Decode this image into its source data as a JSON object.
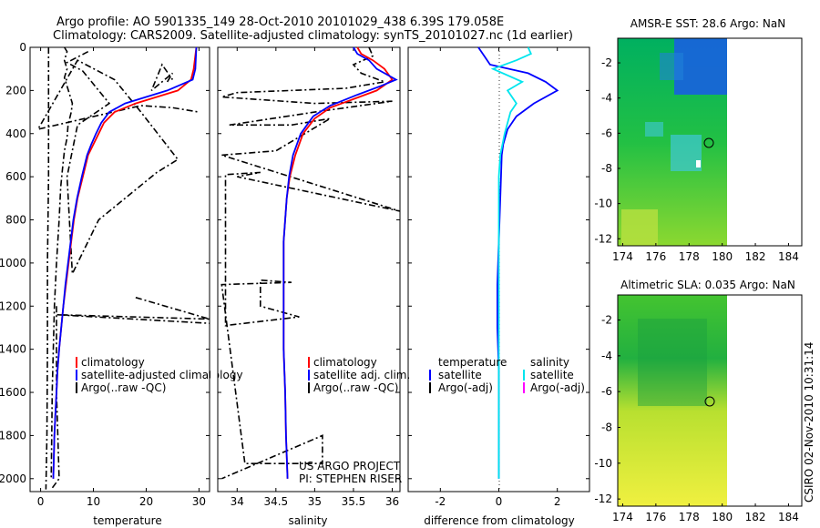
{
  "title": {
    "line1": "Argo profile: AO 5901335_149 28-Oct-2010 20101029_438 6.39S 179.058E",
    "line2": "Climatology: CARS2009. Satellite-adjusted climatology: synTS_20101027.nc (1d earlier)"
  },
  "colors": {
    "climatology": "#ff0000",
    "satellite": "#0000ff",
    "argo": "#000000",
    "salinity_satellite": "#00e5ee",
    "salinity_argo_adj": "#ff00ff"
  },
  "project": {
    "line1": "US ARGO PROJECT",
    "line2": "PI: STEPHEN RISER"
  },
  "timestamp": "CSIRO 02-Nov-2010 10:31:14",
  "chart_data": [
    {
      "id": "temperature",
      "type": "line",
      "xlabel": "temperature",
      "xlim": [
        -2,
        32
      ],
      "ylim": [
        2060,
        0
      ],
      "xticks": [
        0,
        10,
        20,
        30
      ],
      "yticks": [
        0,
        200,
        400,
        600,
        800,
        1000,
        1200,
        1400,
        1600,
        1800,
        2000
      ],
      "legend": {
        "position": "bottom-right",
        "entries": [
          "climatology",
          "satellite-adjusted climatology",
          "Argo(..raw -QC)"
        ]
      },
      "series": [
        {
          "name": "climatology",
          "style": "solid",
          "points": [
            [
              29.5,
              0
            ],
            [
              29,
              100
            ],
            [
              28.5,
              150
            ],
            [
              26,
              200
            ],
            [
              18,
              260
            ],
            [
              14,
              300
            ],
            [
              12,
              350
            ],
            [
              11,
              400
            ],
            [
              10,
              450
            ],
            [
              9,
              500
            ],
            [
              8,
              600
            ],
            [
              7,
              700
            ],
            [
              6.3,
              800
            ],
            [
              5.8,
              900
            ],
            [
              5.3,
              1000
            ],
            [
              4.8,
              1100
            ],
            [
              4.3,
              1200
            ],
            [
              3.9,
              1300
            ],
            [
              3.5,
              1400
            ],
            [
              3.2,
              1500
            ],
            [
              3,
              1600
            ],
            [
              2.8,
              1700
            ],
            [
              2.6,
              1800
            ],
            [
              2.5,
              1900
            ],
            [
              2.4,
              2000
            ]
          ]
        },
        {
          "name": "satellite",
          "style": "solid",
          "points": [
            [
              29.5,
              0
            ],
            [
              29.3,
              100
            ],
            [
              28.8,
              150
            ],
            [
              24,
              200
            ],
            [
              16,
              260
            ],
            [
              13,
              300
            ],
            [
              11.5,
              350
            ],
            [
              10.5,
              400
            ],
            [
              9.6,
              450
            ],
            [
              8.8,
              500
            ],
            [
              7.8,
              600
            ],
            [
              6.9,
              700
            ],
            [
              6.2,
              800
            ],
            [
              5.7,
              900
            ],
            [
              5.2,
              1000
            ],
            [
              4.7,
              1100
            ],
            [
              4.3,
              1200
            ],
            [
              3.9,
              1300
            ],
            [
              3.5,
              1400
            ],
            [
              3.2,
              1500
            ],
            [
              3,
              1600
            ],
            [
              2.8,
              1700
            ],
            [
              2.6,
              1800
            ],
            [
              2.5,
              1900
            ],
            [
              2.4,
              2000
            ]
          ]
        },
        {
          "name": "Argo raw",
          "style": "dashdot",
          "points": [
            [
              4.5,
              0
            ],
            [
              5,
              20
            ],
            [
              4.5,
              60
            ],
            [
              5,
              100
            ],
            [
              4.5,
              140
            ],
            [
              5,
              180
            ],
            [
              5.5,
              220
            ],
            [
              6,
              260
            ],
            [
              5.8,
              300
            ],
            [
              5.2,
              360
            ],
            [
              5,
              420
            ],
            [
              4.5,
              480
            ],
            [
              4.2,
              550
            ],
            [
              3.8,
              650
            ],
            [
              3.5,
              800
            ],
            [
              3,
              1000
            ],
            [
              2.6,
              1200
            ],
            [
              2.4,
              1400
            ],
            [
              2.2,
              1600
            ],
            [
              2.1,
              1800
            ],
            [
              2,
              2000
            ]
          ]
        },
        {
          "name": "Argo raw",
          "style": "dashdot",
          "points": [
            [
              9,
              20
            ],
            [
              5,
              70
            ],
            [
              8,
              110
            ],
            [
              12,
              230
            ],
            [
              13,
              260
            ],
            [
              7,
              360
            ],
            [
              5,
              600
            ],
            [
              6,
              1050
            ],
            [
              11,
              800
            ],
            [
              22,
              580
            ],
            [
              26,
              520
            ],
            [
              19,
              300
            ],
            [
              14,
              150
            ],
            [
              7,
              60
            ],
            [
              -0.5,
              380
            ],
            [
              19,
              270
            ],
            [
              25,
              280
            ],
            [
              30,
              300
            ]
          ]
        },
        {
          "name": "Argo raw",
          "style": "dashdot",
          "points": [
            [
              24,
              160
            ],
            [
              25,
              120
            ],
            [
              21,
              200
            ],
            [
              23,
              80
            ],
            [
              25,
              150
            ]
          ]
        },
        {
          "name": "Argo raw",
          "style": "dashdot",
          "points": [
            [
              1.5,
              0
            ],
            [
              1.5,
              600
            ],
            [
              1.3,
              1000
            ],
            [
              1.3,
              1400
            ],
            [
              1.2,
              1800
            ],
            [
              1,
              2050
            ]
          ]
        },
        {
          "name": "Argo raw",
          "style": "dashdot",
          "points": [
            [
              18,
              1160
            ],
            [
              32,
              1260
            ],
            [
              3,
              1240
            ],
            [
              32,
              1280
            ]
          ]
        },
        {
          "name": "Argo raw",
          "style": "dashdot",
          "points": [
            [
              3,
              1200
            ],
            [
              3,
              1600
            ],
            [
              3.5,
              2000
            ],
            [
              2,
              2050
            ]
          ]
        }
      ]
    },
    {
      "id": "salinity",
      "type": "line",
      "xlabel": "salinity",
      "xlim": [
        33.75,
        36.1
      ],
      "ylim": [
        2060,
        0
      ],
      "xticks": [
        34,
        34.5,
        35,
        35.5,
        36
      ],
      "legend": {
        "position": "bottom-right",
        "entries": [
          "climatology",
          "satellite adj. clim.",
          "Argo(..raw -QC)"
        ]
      },
      "series": [
        {
          "name": "climatology",
          "style": "solid",
          "points": [
            [
              35.55,
              0
            ],
            [
              35.6,
              30
            ],
            [
              35.75,
              60
            ],
            [
              35.9,
              100
            ],
            [
              36,
              150
            ],
            [
              35.8,
              200
            ],
            [
              35.5,
              240
            ],
            [
              35.2,
              280
            ],
            [
              35,
              330
            ],
            [
              34.85,
              400
            ],
            [
              34.75,
              500
            ],
            [
              34.68,
              600
            ],
            [
              34.64,
              700
            ],
            [
              34.62,
              800
            ],
            [
              34.6,
              900
            ],
            [
              34.6,
              1000
            ],
            [
              34.6,
              1200
            ],
            [
              34.6,
              1400
            ],
            [
              34.62,
              1600
            ],
            [
              34.63,
              1800
            ],
            [
              34.65,
              2000
            ]
          ]
        },
        {
          "name": "satellite",
          "style": "solid",
          "points": [
            [
              35.5,
              0
            ],
            [
              35.55,
              30
            ],
            [
              35.7,
              60
            ],
            [
              35.8,
              100
            ],
            [
              36.05,
              150
            ],
            [
              35.85,
              180
            ],
            [
              35.55,
              220
            ],
            [
              35.2,
              270
            ],
            [
              34.98,
              320
            ],
            [
              34.82,
              400
            ],
            [
              34.72,
              500
            ],
            [
              34.67,
              600
            ],
            [
              34.64,
              700
            ],
            [
              34.62,
              800
            ],
            [
              34.6,
              900
            ],
            [
              34.6,
              1000
            ],
            [
              34.6,
              1200
            ],
            [
              34.6,
              1400
            ],
            [
              34.62,
              1600
            ],
            [
              34.63,
              1800
            ],
            [
              34.65,
              2000
            ]
          ]
        },
        {
          "name": "Argo raw",
          "style": "dashdot",
          "points": [
            [
              35.7,
              0
            ],
            [
              35.75,
              40
            ],
            [
              35.5,
              80
            ],
            [
              35.6,
              120
            ],
            [
              35.9,
              160
            ],
            [
              35.4,
              190
            ],
            [
              34,
              210
            ],
            [
              33.8,
              230
            ],
            [
              35,
              260
            ],
            [
              36,
              250
            ],
            [
              35,
              300
            ],
            [
              33.9,
              360
            ],
            [
              34.7,
              360
            ],
            [
              35.2,
              330
            ],
            [
              34.5,
              480
            ],
            [
              33.8,
              500
            ],
            [
              36.1,
              760
            ],
            [
              34,
              600
            ],
            [
              34.3,
              580
            ],
            [
              33.85,
              590
            ],
            [
              33.85,
              1290
            ],
            [
              34.8,
              1250
            ],
            [
              34.3,
              1200
            ],
            [
              34.3,
              1080
            ],
            [
              34.7,
              1090
            ],
            [
              33.8,
              1100
            ],
            [
              34.1,
              1930
            ],
            [
              35.1,
              1930
            ],
            [
              35.1,
              1800
            ],
            [
              33.8,
              2000
            ]
          ]
        }
      ]
    },
    {
      "id": "difference",
      "type": "line",
      "xlabel": "difference from climatology",
      "xlim": [
        -3.1,
        3.1
      ],
      "ylim": [
        2060,
        0
      ],
      "xticks": [
        -2,
        0,
        2
      ],
      "legend": {
        "position": "bottom",
        "temperature_title": "temperature",
        "salinity_title": "salinity",
        "entries": [
          "satellite",
          "Argo(-adj)",
          "satellite",
          "Argo(-adj)"
        ]
      },
      "series": [
        {
          "name": "satellite temperature",
          "style": "solid",
          "points": [
            [
              -0.7,
              0
            ],
            [
              -0.5,
              40
            ],
            [
              -0.3,
              80
            ],
            [
              1,
              120
            ],
            [
              1.6,
              160
            ],
            [
              2,
              200
            ],
            [
              1.2,
              260
            ],
            [
              0.6,
              320
            ],
            [
              0.3,
              380
            ],
            [
              0.15,
              450
            ],
            [
              0.1,
              500
            ],
            [
              0.05,
              700
            ],
            [
              0,
              900
            ],
            [
              -0.05,
              1100
            ],
            [
              -0.05,
              1300
            ],
            [
              0,
              1500
            ],
            [
              0,
              1700
            ],
            [
              0,
              1900
            ],
            [
              0,
              2000
            ]
          ]
        },
        {
          "name": "satellite salinity",
          "style": "solid",
          "points": [
            [
              1,
              0
            ],
            [
              1.1,
              30
            ],
            [
              0.6,
              60
            ],
            [
              -0.2,
              100
            ],
            [
              0.8,
              160
            ],
            [
              0.3,
              200
            ],
            [
              0.6,
              260
            ],
            [
              0.4,
              300
            ],
            [
              0.2,
              400
            ],
            [
              0.05,
              500
            ],
            [
              0,
              600
            ],
            [
              0,
              800
            ],
            [
              0,
              1000
            ],
            [
              0,
              1200
            ],
            [
              0,
              1400
            ],
            [
              0,
              1600
            ],
            [
              0,
              1800
            ],
            [
              0,
              2000
            ]
          ]
        }
      ]
    }
  ],
  "maps": [
    {
      "id": "sst",
      "title": "AMSR-E SST: 28.6 Argo: NaN",
      "xticks": [
        174,
        176,
        178,
        180,
        182,
        184
      ],
      "yticks": [
        -2,
        -4,
        -6,
        -8,
        -10,
        -12
      ]
    },
    {
      "id": "sla",
      "title": "Altimetric SLA: 0.035 Argo: NaN",
      "xticks": [
        174,
        176,
        178,
        180,
        182,
        184
      ],
      "yticks": [
        -2,
        -4,
        -6,
        -8,
        -10,
        -12
      ]
    }
  ]
}
